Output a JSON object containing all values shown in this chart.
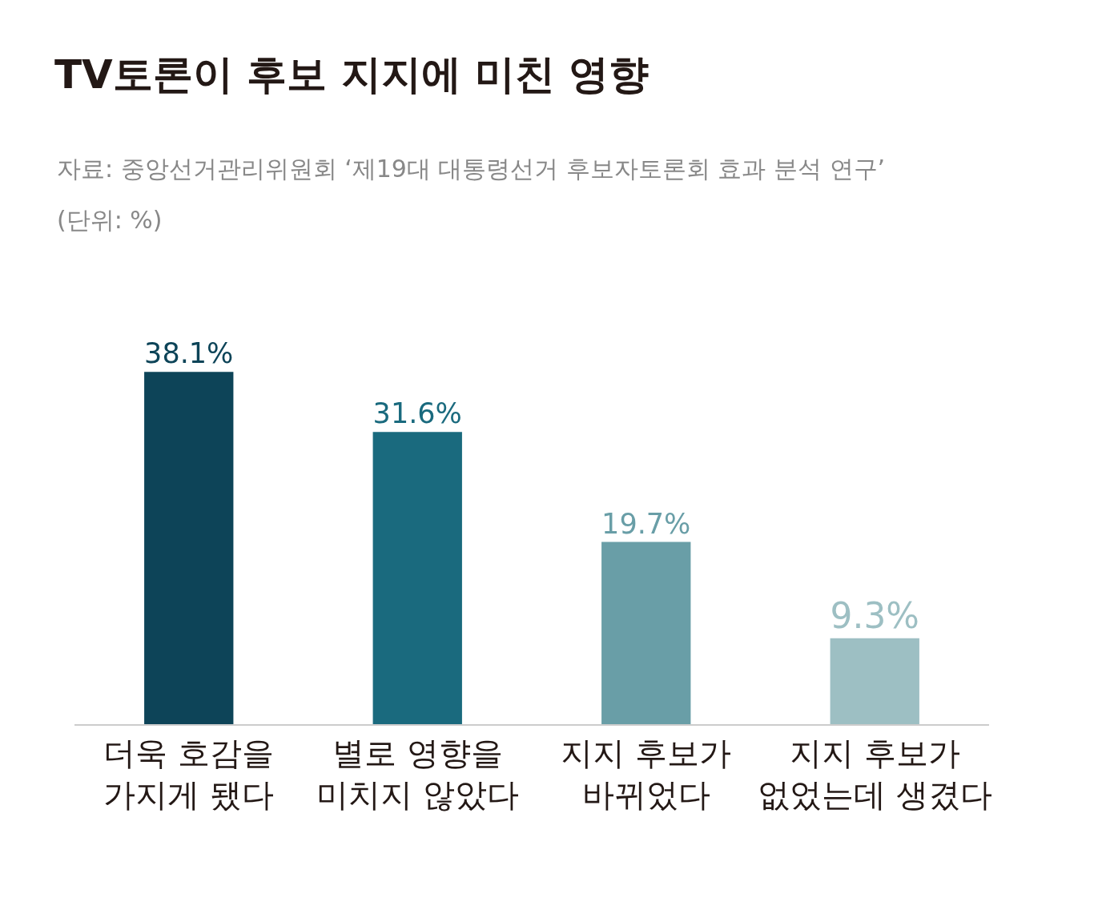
{
  "chart_data": {
    "type": "bar",
    "title": "TV토론이 후보 지지에 미친 영향",
    "annotations": [
      "자료: 중앙선거관리위원회 ‘제19대 대통령선거 후보자토론회 효과 분석 연구’",
      "(단위: %)"
    ],
    "categories": [
      "더욱 호감을\n가지게 됐다",
      "별로 영향을\n미치지 않았다",
      "지지 후보가\n바뀌었다",
      "지지 후보가\n없었는데 생겼다"
    ],
    "values": [
      38.1,
      31.6,
      19.7,
      9.3
    ],
    "colors": [
      "#0d4458",
      "#1a6a7e",
      "#699ea7",
      "#9dbfc3"
    ],
    "value_labels": [
      "38.1%",
      "31.6%",
      "19.7%",
      "9.3%"
    ]
  }
}
